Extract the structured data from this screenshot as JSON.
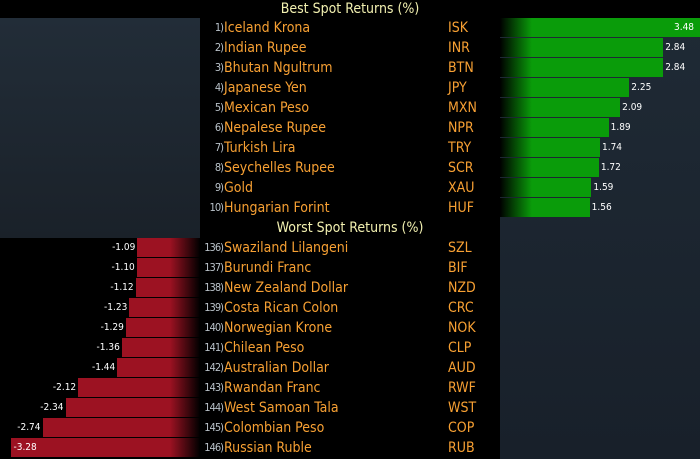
{
  "chart_data": {
    "type": "bar",
    "best": {
      "title": "Best Spot Returns (%)",
      "rows": [
        {
          "rank": "1)",
          "name": "Iceland Krona",
          "code": "ISK",
          "value": 3.48
        },
        {
          "rank": "2)",
          "name": "Indian Rupee",
          "code": "INR",
          "value": 2.84
        },
        {
          "rank": "3)",
          "name": "Bhutan Ngultrum",
          "code": "BTN",
          "value": 2.84
        },
        {
          "rank": "4)",
          "name": "Japanese Yen",
          "code": "JPY",
          "value": 2.25
        },
        {
          "rank": "5)",
          "name": "Mexican Peso",
          "code": "MXN",
          "value": 2.09
        },
        {
          "rank": "6)",
          "name": "Nepalese Rupee",
          "code": "NPR",
          "value": 1.89
        },
        {
          "rank": "7)",
          "name": "Turkish Lira",
          "code": "TRY",
          "value": 1.74
        },
        {
          "rank": "8)",
          "name": "Seychelles Rupee",
          "code": "SCR",
          "value": 1.72
        },
        {
          "rank": "9)",
          "name": "Gold",
          "code": "XAU",
          "value": 1.59
        },
        {
          "rank": "10)",
          "name": "Hungarian Forint",
          "code": "HUF",
          "value": 1.56
        }
      ]
    },
    "worst": {
      "title": "Worst Spot Returns (%)",
      "rows": [
        {
          "rank": "136)",
          "name": "Swaziland Lilangeni",
          "code": "SZL",
          "value": -1.09
        },
        {
          "rank": "137)",
          "name": "Burundi Franc",
          "code": "BIF",
          "value": -1.1
        },
        {
          "rank": "138)",
          "name": "New Zealand Dollar",
          "code": "NZD",
          "value": -1.12
        },
        {
          "rank": "139)",
          "name": "Costa Rican Colon",
          "code": "CRC",
          "value": -1.23
        },
        {
          "rank": "140)",
          "name": "Norwegian Krone",
          "code": "NOK",
          "value": -1.29
        },
        {
          "rank": "141)",
          "name": "Chilean Peso",
          "code": "CLP",
          "value": -1.36
        },
        {
          "rank": "142)",
          "name": "Australian Dollar",
          "code": "AUD",
          "value": -1.44
        },
        {
          "rank": "143)",
          "name": "Rwandan Franc",
          "code": "RWF",
          "value": -2.12
        },
        {
          "rank": "144)",
          "name": "West Samoan Tala",
          "code": "WST",
          "value": -2.34
        },
        {
          "rank": "145)",
          "name": "Colombian Peso",
          "code": "COP",
          "value": -2.74
        },
        {
          "rank": "146)",
          "name": "Russian Ruble",
          "code": "RUB",
          "value": -3.28
        }
      ]
    },
    "colors": {
      "positive": "#0a9c0a",
      "negative": "#9c1222",
      "label": "#f7a033",
      "title": "#f2f0b0"
    }
  }
}
